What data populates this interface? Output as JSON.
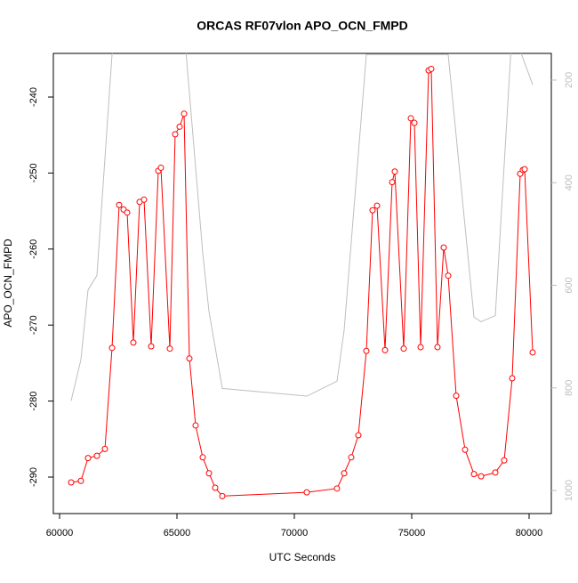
{
  "chart_data": {
    "type": "line",
    "title": "ORCAS RF07vlon APO_OCN_FMPD",
    "xlabel": "UTC Seconds",
    "ylabel": "APO_OCN_FMPD",
    "xlim": [
      59735,
      80947
    ],
    "ylim": [
      -294.8,
      -234.26
    ],
    "y2lim": [
      1045,
      148
    ],
    "xticks": [
      60000,
      65000,
      70000,
      75000,
      80000
    ],
    "yticks": [
      -290,
      -280,
      -270,
      -260,
      -250,
      -240
    ],
    "y2ticks": [
      200,
      400,
      600,
      800,
      1000
    ],
    "series": [
      {
        "color": "#ff0000",
        "markers": true,
        "x": [
          60492,
          60909,
          61212,
          61591,
          61932,
          62235,
          62538,
          62727,
          62879,
          63144,
          63409,
          63598,
          63902,
          64205,
          64318,
          64697,
          64924,
          65114,
          65303,
          65530,
          65795,
          66098,
          66364,
          66629,
          66932,
          70530,
          71818,
          72121,
          72424,
          72727,
          73068,
          73333,
          73523,
          73864,
          74167,
          74280,
          74659,
          74962,
          75114,
          75379,
          75720,
          75833,
          76098,
          76364,
          76553,
          76894,
          77273,
          77652,
          77955,
          78561,
          78939,
          79280,
          79621,
          79735,
          79811,
          80152
        ],
        "values": [
          -290.7,
          -290.5,
          -287.5,
          -287.2,
          -286.3,
          -273.0,
          -254.2,
          -254.8,
          -255.2,
          -272.3,
          -253.8,
          -253.5,
          -272.8,
          -249.7,
          -249.3,
          -273.1,
          -244.9,
          -243.9,
          -242.2,
          -274.4,
          -283.2,
          -287.4,
          -289.5,
          -291.4,
          -292.5,
          -292.0,
          -291.5,
          -289.5,
          -287.4,
          -284.5,
          -273.4,
          -254.9,
          -254.3,
          -273.3,
          -251.2,
          -249.8,
          -273.1,
          -242.8,
          -243.4,
          -272.9,
          -236.5,
          -236.3,
          -272.9,
          -259.8,
          -263.5,
          -279.3,
          -286.4,
          -289.6,
          -289.9,
          -289.4,
          -287.8,
          -277.0,
          -250.1,
          -249.6,
          -249.5,
          -273.6
        ]
      },
      {
        "color": "#bebebe",
        "markers": false,
        "axis": "y2",
        "x": [
          60492,
          60909,
          61212,
          61591,
          62235,
          62538,
          65303,
          66098,
          66364,
          66932,
          70530,
          71818,
          72121,
          73068,
          76553,
          77652,
          77955,
          78561,
          79280,
          80152
        ],
        "values": [
          825,
          745,
          609,
          581,
          150,
          100,
          100,
          537,
          651,
          801,
          816,
          787,
          688,
          150,
          150,
          662,
          671,
          659,
          100,
          209
        ]
      }
    ]
  }
}
